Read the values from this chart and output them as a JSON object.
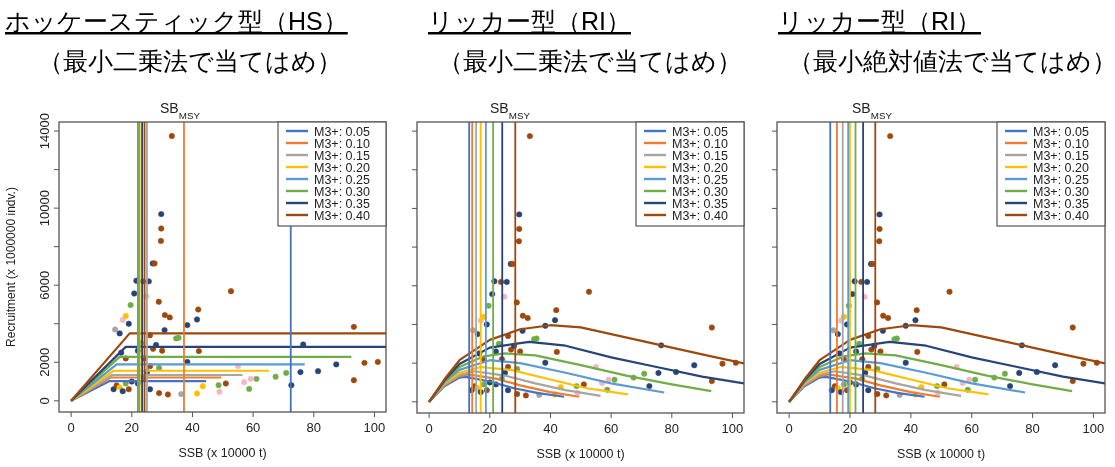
{
  "chart_data": [
    {
      "type": "line",
      "title": "ホッケースティック型（HS）",
      "subtitle": "（最小二乗法で当てはめ）",
      "xlabel": "SSB (x 10000 t)",
      "ylabel": "Recruitment (x 1000000 indv.)",
      "annotations": [
        "SB$_{MSY}$"
      ],
      "xlim": [
        -4,
        103.8
      ],
      "ylim": [
        -580,
        14470
      ],
      "xticks": [
        0,
        20,
        40,
        60,
        80,
        100
      ],
      "yticks": [
        0,
        2000,
        {
          "value": 4000,
          "label": null
        },
        6000,
        {
          "value": 8000,
          "label": null
        },
        10000,
        {
          "value": 12000,
          "label": null
        },
        14000
      ],
      "legend": "top right",
      "series": [
        {
          "type": "scatter",
          "marker": "circle",
          "x": [
            33.2,
            29.7,
            29.7,
            29.6,
            26.9,
            27.5,
            21.5,
            23.7,
            25.6,
            20.8,
            24.8,
            19.6,
            28.9,
            52.7,
            41.9,
            41.5,
            38.3,
            30.9,
            32.5,
            93.2,
            76.5,
            87.4,
            96.7,
            101.1,
            93.2,
            81.4,
            75.6,
            72.6,
            70.9,
            67.4,
            61.1,
            58.7,
            57.0,
            59.2,
            55.0,
            51.0,
            48.9,
            48.6,
            43.4,
            41.5,
            36.3,
            31.9,
            38.3,
            42.1,
            34.6,
            35.4,
            30.8,
            14,
            15,
            16,
            17,
            18,
            19,
            20,
            14.5,
            16,
            17,
            18,
            19,
            16.5,
            18,
            22,
            23,
            24,
            25,
            26,
            27,
            28,
            29,
            30,
            26,
            24,
            22,
            26,
            29
          ],
          "values": [
            13740,
            9690,
            8940,
            8300,
            7130,
            7130,
            6230,
            6200,
            6200,
            5570,
            5430,
            4970,
            5140,
            5690,
            4740,
            4220,
            3930,
            4450,
            4330,
            3840,
            2920,
            1890,
            1970,
            2020,
            1070,
            1540,
            1490,
            810,
            1450,
            1250,
            1140,
            620,
            970,
            1140,
            1800,
            900,
            470,
            810,
            760,
            380,
            350,
            330,
            2020,
            2580,
            3240,
            3270,
            3670,
            600,
            800,
            700,
            500,
            900,
            600,
            1000,
            3700,
            3500,
            4200,
            4400,
            4000,
            2500,
            2200,
            2600,
            3000,
            2200,
            1500,
            1800,
            2700,
            2900,
            1700,
            2600,
            3400,
            1200,
            900,
            600,
            400
          ],
          "colors": [
            "#9e480e",
            "#264478",
            "#9e480e",
            "#9e480e",
            "#264478",
            "#9e480e",
            "#264478",
            "#9e480e",
            "#264478",
            "#264478",
            "#f4b6c2",
            "#70ad47",
            "#9e480e",
            "#9e480e",
            "#9e480e",
            "#264478",
            "#264478",
            "#9e480e",
            "#9e480e",
            "#9e480e",
            "#264478",
            "#264478",
            "#9e480e",
            "#9e480e",
            "#9e480e",
            "#264478",
            "#264478",
            "#264478",
            "#70ad47",
            "#70ad47",
            "#70ad47",
            "#70ad47",
            "#f4b6c2",
            "#f4b6c2",
            "#f4b6c2",
            "#9e480e",
            "#f4b6c2",
            "#70ad47",
            "#ffc000",
            "#ffc000",
            "#a5a5a5",
            "#9e480e",
            "#264478",
            "#9e480e",
            "#70ad47",
            "#70ad47",
            "#264478",
            "#264478",
            "#9e480e",
            "#ffc000",
            "#264478",
            "#70ad47",
            "#9e480e",
            "#264478",
            "#a5a5a5",
            "#264478",
            "#f4b6c2",
            "#ffc000",
            "#264478",
            "#264478",
            "#9e480e",
            "#264478",
            "#70ad47",
            "#9e480e",
            "#264478",
            "#9e480e",
            "#9e480e",
            "#264478",
            "#70ad47",
            "#9e480e",
            "#9e480e",
            "#70ad47",
            "#264478",
            "#264478",
            "#9e480e"
          ]
        },
        {
          "name": "M3+: 0.05",
          "color": "#4472c4",
          "x": [
            0,
            12.5,
            44.5
          ],
          "values": [
            0,
            1020,
            1020
          ]
        },
        {
          "name": "M3+: 0.10",
          "color": "#ed7d31",
          "x": [
            0,
            13,
            49.5
          ],
          "values": [
            0,
            1210,
            1210
          ]
        },
        {
          "name": "M3+: 0.15",
          "color": "#a5a5a5",
          "x": [
            0,
            13.5,
            56.5
          ],
          "values": [
            0,
            1340,
            1340
          ]
        },
        {
          "name": "M3+: 0.20",
          "color": "#ffc000",
          "x": [
            0,
            14,
            65.2
          ],
          "values": [
            0,
            1560,
            1560
          ]
        },
        {
          "name": "M3+: 0.25",
          "color": "#5b9bd5",
          "x": [
            0,
            15,
            77
          ],
          "values": [
            0,
            1890,
            1890
          ]
        },
        {
          "name": "M3+: 0.30",
          "color": "#70ad47",
          "x": [
            0,
            16,
            92.4
          ],
          "values": [
            0,
            2280,
            2280
          ]
        },
        {
          "name": "M3+: 0.35",
          "color": "#264478",
          "x": [
            0,
            18,
            103.8
          ],
          "values": [
            0,
            2800,
            2800
          ]
        },
        {
          "name": "M3+: 0.40",
          "color": "#9e480e",
          "x": [
            0,
            19.3,
            103.8
          ],
          "values": [
            0,
            3500,
            3500
          ]
        }
      ],
      "ref_lines": [
        {
          "axis": "x",
          "value": 72.4,
          "color": "#4472c4"
        },
        {
          "axis": "x",
          "value": 37.2,
          "color": "#ed7d31"
        },
        {
          "axis": "x",
          "value": 25.0,
          "color": "#a5a5a5"
        },
        {
          "axis": "x",
          "value": 22.6,
          "color": "#ffc000"
        },
        {
          "axis": "x",
          "value": 22.0,
          "color": "#5b9bd5"
        },
        {
          "axis": "x",
          "value": 22.4,
          "color": "#70ad47"
        },
        {
          "axis": "x",
          "value": 23.4,
          "color": "#264478"
        },
        {
          "axis": "x",
          "value": 24.2,
          "color": "#9e480e"
        }
      ]
    },
    {
      "type": "line",
      "title": "リッカー型（RI）",
      "subtitle": "（最小二乗法で当てはめ）",
      "xlabel": "SSB (x 10000 t)",
      "annotations": [
        "SB$_{MSY}$"
      ],
      "xlim": [
        -4,
        103.8
      ],
      "ylim": [
        -580,
        14470
      ],
      "xticks": [
        0,
        20,
        40,
        60,
        80,
        100
      ],
      "tick_labels": "x",
      "yticks": [
        {
          "value": 0,
          "label": null
        },
        {
          "value": 2000,
          "label": null
        },
        {
          "value": 4000,
          "label": null
        },
        {
          "value": 6000,
          "label": null
        },
        {
          "value": 8000,
          "label": null
        },
        {
          "value": 10000,
          "label": null
        },
        {
          "value": 12000,
          "label": null
        },
        {
          "value": 14000,
          "label": null
        }
      ],
      "legend": "top right",
      "series": [
        {
          "type": "scatter",
          "marker": "circle",
          "x": [
            33.2,
            29.7,
            29.7,
            29.6,
            26.9,
            27.5,
            21.5,
            23.7,
            25.6,
            20.8,
            24.8,
            19.6,
            28.9,
            52.7,
            41.9,
            41.5,
            38.3,
            30.9,
            32.5,
            93.2,
            76.5,
            87.4,
            96.7,
            101.1,
            93.2,
            81.4,
            75.6,
            72.6,
            70.9,
            67.4,
            61.1,
            58.7,
            57.0,
            59.2,
            55.0,
            51.0,
            48.9,
            48.6,
            43.4,
            41.5,
            36.3,
            31.9,
            38.3,
            42.1,
            34.6,
            35.4,
            30.8,
            14,
            15,
            16,
            17,
            18,
            19,
            20,
            14.5,
            16,
            17,
            18,
            19,
            16.5,
            18,
            22,
            23,
            24,
            25,
            26,
            27,
            28,
            29,
            30,
            26,
            24,
            22,
            26,
            29
          ],
          "values": [
            13740,
            9690,
            8940,
            8300,
            7130,
            7130,
            6230,
            6200,
            6200,
            5570,
            5430,
            4970,
            5140,
            5690,
            4740,
            4220,
            3930,
            4450,
            4330,
            3840,
            2920,
            1890,
            1970,
            2020,
            1070,
            1540,
            1490,
            810,
            1450,
            1250,
            1140,
            620,
            970,
            1140,
            1800,
            900,
            470,
            810,
            760,
            380,
            350,
            330,
            2020,
            2580,
            3240,
            3270,
            3670,
            600,
            800,
            700,
            500,
            900,
            600,
            1000,
            3700,
            3500,
            4200,
            4400,
            4000,
            2500,
            2200,
            2600,
            3000,
            2200,
            1500,
            1800,
            2700,
            2900,
            1700,
            2600,
            3400,
            1200,
            900,
            600,
            400
          ],
          "colors": [
            "#9e480e",
            "#264478",
            "#9e480e",
            "#9e480e",
            "#264478",
            "#9e480e",
            "#264478",
            "#9e480e",
            "#264478",
            "#264478",
            "#f4b6c2",
            "#70ad47",
            "#9e480e",
            "#9e480e",
            "#9e480e",
            "#264478",
            "#264478",
            "#9e480e",
            "#9e480e",
            "#9e480e",
            "#264478",
            "#264478",
            "#9e480e",
            "#9e480e",
            "#9e480e",
            "#264478",
            "#264478",
            "#264478",
            "#70ad47",
            "#70ad47",
            "#70ad47",
            "#70ad47",
            "#f4b6c2",
            "#f4b6c2",
            "#f4b6c2",
            "#9e480e",
            "#f4b6c2",
            "#70ad47",
            "#ffc000",
            "#ffc000",
            "#a5a5a5",
            "#9e480e",
            "#264478",
            "#9e480e",
            "#70ad47",
            "#70ad47",
            "#264478",
            "#264478",
            "#9e480e",
            "#ffc000",
            "#264478",
            "#70ad47",
            "#9e480e",
            "#264478",
            "#a5a5a5",
            "#264478",
            "#f4b6c2",
            "#ffc000",
            "#264478",
            "#264478",
            "#9e480e",
            "#264478",
            "#70ad47",
            "#9e480e",
            "#264478",
            "#9e480e",
            "#9e480e",
            "#264478",
            "#70ad47",
            "#9e480e",
            "#9e480e",
            "#70ad47",
            "#264478",
            "#264478",
            "#9e480e"
          ]
        },
        {
          "name": "M3+: 0.05",
          "color": "#4472c4",
          "x": [
            0,
            5,
            10,
            12,
            20,
            28,
            36,
            44.5
          ],
          "values": [
            0,
            800,
            1250,
            1290,
            1050,
            700,
            450,
            260
          ]
        },
        {
          "name": "M3+: 0.10",
          "color": "#ed7d31",
          "x": [
            0,
            5,
            10,
            13,
            22,
            30,
            40,
            49.5
          ],
          "values": [
            0,
            850,
            1330,
            1410,
            1200,
            850,
            500,
            260
          ]
        },
        {
          "name": "M3+: 0.15",
          "color": "#a5a5a5",
          "x": [
            0,
            5,
            10,
            15,
            25,
            35,
            45,
            56.5
          ],
          "values": [
            0,
            900,
            1400,
            1580,
            1350,
            950,
            600,
            310
          ]
        },
        {
          "name": "M3+: 0.20",
          "color": "#ffc000",
          "x": [
            0,
            5,
            10,
            17,
            27,
            40,
            52,
            65.5
          ],
          "values": [
            0,
            950,
            1500,
            1800,
            1650,
            1150,
            700,
            380
          ]
        },
        {
          "name": "M3+: 0.25",
          "color": "#5b9bd5",
          "x": [
            0,
            5,
            10,
            20,
            30,
            45,
            60,
            77.5
          ],
          "values": [
            0,
            1000,
            1650,
            2150,
            2000,
            1500,
            950,
            480
          ]
        },
        {
          "name": "M3+: 0.30",
          "color": "#70ad47",
          "x": [
            0,
            5,
            10,
            18,
            25,
            35,
            50,
            65,
            80,
            93
          ],
          "values": [
            0,
            1050,
            1800,
            2350,
            2500,
            2400,
            1900,
            1350,
            900,
            550
          ]
        },
        {
          "name": "M3+: 0.35",
          "color": "#264478",
          "x": [
            0,
            5,
            10,
            20,
            33,
            45,
            60,
            75,
            90,
            103.8
          ],
          "values": [
            0,
            1100,
            1950,
            2800,
            3100,
            2900,
            2300,
            1800,
            1300,
            950
          ]
        },
        {
          "name": "M3+: 0.40",
          "color": "#9e480e",
          "x": [
            0,
            5,
            10,
            20,
            30,
            40,
            50,
            60,
            70,
            80,
            90,
            103.8
          ],
          "values": [
            0,
            1150,
            2150,
            3200,
            3750,
            3960,
            3850,
            3500,
            3150,
            2800,
            2450,
            1980
          ]
        }
      ],
      "ref_lines": [
        {
          "axis": "x",
          "value": 13.2,
          "color": "#4472c4"
        },
        {
          "axis": "x",
          "value": 14.2,
          "color": "#ed7d31"
        },
        {
          "axis": "x",
          "value": 15.5,
          "color": "#a5a5a5"
        },
        {
          "axis": "x",
          "value": 17.0,
          "color": "#ffc000"
        },
        {
          "axis": "x",
          "value": 18.7,
          "color": "#5b9bd5"
        },
        {
          "axis": "x",
          "value": 21.1,
          "color": "#70ad47"
        },
        {
          "axis": "x",
          "value": 24.1,
          "color": "#264478"
        },
        {
          "axis": "x",
          "value": 28.4,
          "color": "#9e480e"
        }
      ]
    },
    {
      "type": "line",
      "title": "リッカー型（RI）",
      "subtitle": "（最小絶対値法で当てはめ）",
      "xlabel": "SSB (x 10000 t)",
      "annotations": [
        "SB$_{MSY}$"
      ],
      "xlim": [
        -4,
        103.8
      ],
      "ylim": [
        -580,
        14470
      ],
      "xticks": [
        0,
        20,
        40,
        60,
        80,
        100
      ],
      "tick_labels": "x",
      "yticks": [
        {
          "value": 0,
          "label": null
        },
        {
          "value": 2000,
          "label": null
        },
        {
          "value": 4000,
          "label": null
        },
        {
          "value": 6000,
          "label": null
        },
        {
          "value": 8000,
          "label": null
        },
        {
          "value": 10000,
          "label": null
        },
        {
          "value": 12000,
          "label": null
        },
        {
          "value": 14000,
          "label": null
        }
      ],
      "legend": "top right",
      "series": [
        {
          "type": "scatter",
          "marker": "circle",
          "x": [
            33.2,
            29.7,
            29.7,
            29.6,
            26.9,
            27.5,
            21.5,
            23.7,
            25.6,
            20.8,
            24.8,
            19.6,
            28.9,
            52.7,
            41.9,
            41.5,
            38.3,
            30.9,
            32.5,
            93.2,
            76.5,
            87.4,
            96.7,
            101.1,
            93.2,
            81.4,
            75.6,
            72.6,
            70.9,
            67.4,
            61.1,
            58.7,
            57.0,
            59.2,
            55.0,
            51.0,
            48.9,
            48.6,
            43.4,
            41.5,
            36.3,
            31.9,
            38.3,
            42.1,
            34.6,
            35.4,
            30.8,
            14,
            15,
            16,
            17,
            18,
            19,
            20,
            14.5,
            16,
            17,
            18,
            19,
            16.5,
            18,
            22,
            23,
            24,
            25,
            26,
            27,
            28,
            29,
            30,
            26,
            24,
            22,
            26,
            29
          ],
          "values": [
            13740,
            9690,
            8940,
            8300,
            7130,
            7130,
            6230,
            6200,
            6200,
            5570,
            5430,
            4970,
            5140,
            5690,
            4740,
            4220,
            3930,
            4450,
            4330,
            3840,
            2920,
            1890,
            1970,
            2020,
            1070,
            1540,
            1490,
            810,
            1450,
            1250,
            1140,
            620,
            970,
            1140,
            1800,
            900,
            470,
            810,
            760,
            380,
            350,
            330,
            2020,
            2580,
            3240,
            3270,
            3670,
            600,
            800,
            700,
            500,
            900,
            600,
            1000,
            3700,
            3500,
            4200,
            4400,
            4000,
            2500,
            2200,
            2600,
            3000,
            2200,
            1500,
            1800,
            2700,
            2900,
            1700,
            2600,
            3400,
            1200,
            900,
            600,
            400
          ],
          "colors": [
            "#9e480e",
            "#264478",
            "#9e480e",
            "#9e480e",
            "#264478",
            "#9e480e",
            "#264478",
            "#9e480e",
            "#264478",
            "#264478",
            "#f4b6c2",
            "#70ad47",
            "#9e480e",
            "#9e480e",
            "#9e480e",
            "#264478",
            "#264478",
            "#9e480e",
            "#9e480e",
            "#9e480e",
            "#264478",
            "#264478",
            "#9e480e",
            "#9e480e",
            "#9e480e",
            "#264478",
            "#264478",
            "#264478",
            "#70ad47",
            "#70ad47",
            "#70ad47",
            "#70ad47",
            "#f4b6c2",
            "#f4b6c2",
            "#f4b6c2",
            "#9e480e",
            "#f4b6c2",
            "#70ad47",
            "#ffc000",
            "#ffc000",
            "#a5a5a5",
            "#9e480e",
            "#264478",
            "#9e480e",
            "#70ad47",
            "#70ad47",
            "#264478",
            "#264478",
            "#9e480e",
            "#ffc000",
            "#264478",
            "#70ad47",
            "#9e480e",
            "#264478",
            "#a5a5a5",
            "#264478",
            "#f4b6c2",
            "#ffc000",
            "#264478",
            "#264478",
            "#9e480e",
            "#264478",
            "#70ad47",
            "#9e480e",
            "#264478",
            "#9e480e",
            "#9e480e",
            "#264478",
            "#70ad47",
            "#9e480e",
            "#9e480e",
            "#70ad47",
            "#264478",
            "#264478",
            "#9e480e"
          ]
        },
        {
          "name": "M3+: 0.05",
          "color": "#4472c4",
          "x": [
            0,
            5,
            10,
            12,
            20,
            28,
            36,
            44.5
          ],
          "values": [
            0,
            800,
            1250,
            1290,
            1050,
            700,
            450,
            260
          ]
        },
        {
          "name": "M3+: 0.10",
          "color": "#ed7d31",
          "x": [
            0,
            5,
            10,
            13,
            22,
            30,
            40,
            49.5
          ],
          "values": [
            0,
            850,
            1330,
            1410,
            1200,
            850,
            500,
            260
          ]
        },
        {
          "name": "M3+: 0.15",
          "color": "#a5a5a5",
          "x": [
            0,
            5,
            10,
            15,
            25,
            35,
            45,
            56.5
          ],
          "values": [
            0,
            900,
            1400,
            1580,
            1350,
            950,
            600,
            310
          ]
        },
        {
          "name": "M3+: 0.20",
          "color": "#ffc000",
          "x": [
            0,
            5,
            10,
            17,
            27,
            40,
            52,
            65.5
          ],
          "values": [
            0,
            950,
            1500,
            1800,
            1650,
            1150,
            700,
            380
          ]
        },
        {
          "name": "M3+: 0.25",
          "color": "#5b9bd5",
          "x": [
            0,
            5,
            10,
            20,
            30,
            45,
            60,
            77.5
          ],
          "values": [
            0,
            1000,
            1650,
            2150,
            2000,
            1500,
            950,
            480
          ]
        },
        {
          "name": "M3+: 0.30",
          "color": "#70ad47",
          "x": [
            0,
            5,
            10,
            18,
            25,
            35,
            50,
            65,
            80,
            93
          ],
          "values": [
            0,
            1050,
            1800,
            2350,
            2500,
            2400,
            1900,
            1350,
            900,
            550
          ]
        },
        {
          "name": "M3+: 0.35",
          "color": "#264478",
          "x": [
            0,
            5,
            10,
            20,
            33,
            45,
            60,
            75,
            90,
            103.8
          ],
          "values": [
            0,
            1100,
            1950,
            2800,
            3100,
            2900,
            2300,
            1800,
            1300,
            950
          ]
        },
        {
          "name": "M3+: 0.40",
          "color": "#9e480e",
          "x": [
            0,
            5,
            10,
            20,
            30,
            40,
            50,
            60,
            70,
            80,
            90,
            103.8
          ],
          "values": [
            0,
            1150,
            2150,
            3200,
            3750,
            3960,
            3850,
            3500,
            3150,
            2800,
            2450,
            1980
          ]
        }
      ],
      "ref_lines": [
        {
          "axis": "x",
          "value": 13.5,
          "color": "#4472c4"
        },
        {
          "axis": "x",
          "value": 15.7,
          "color": "#ed7d31"
        },
        {
          "axis": "x",
          "value": 17.6,
          "color": "#a5a5a5"
        },
        {
          "axis": "x",
          "value": 20.0,
          "color": "#ffc000"
        },
        {
          "axis": "x",
          "value": 19.4,
          "color": "#5b9bd5"
        },
        {
          "axis": "x",
          "value": 21.8,
          "color": "#70ad47"
        },
        {
          "axis": "x",
          "value": 24.3,
          "color": "#264478"
        },
        {
          "axis": "x",
          "value": 28.3,
          "color": "#9e480e"
        }
      ]
    }
  ]
}
